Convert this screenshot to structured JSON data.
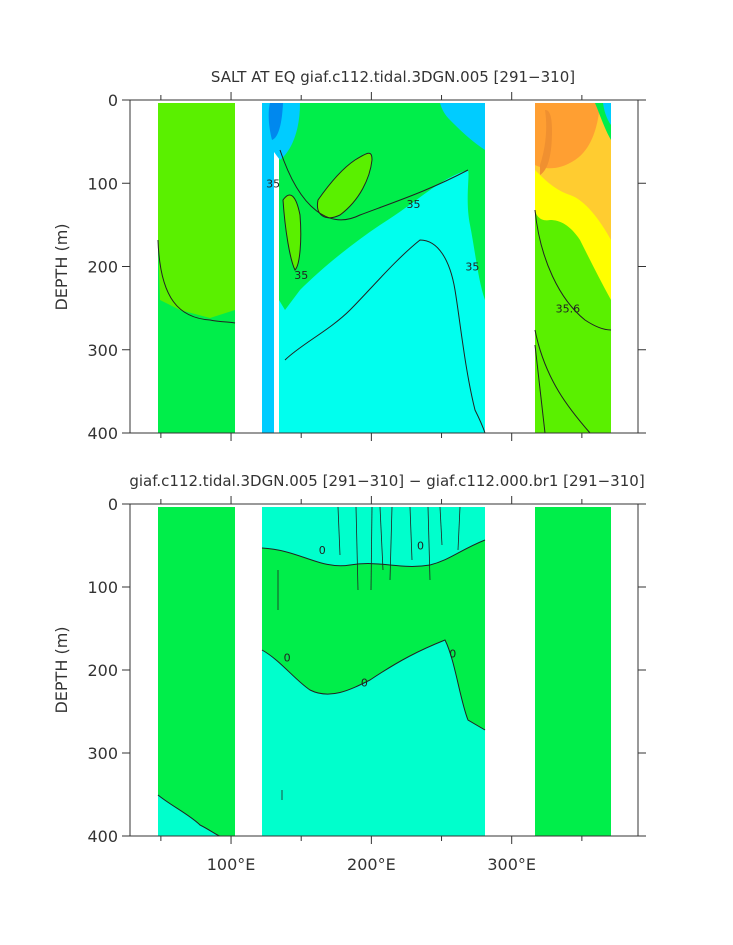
{
  "chart_data": [
    {
      "type": "heatmap",
      "title": "SALT AT EQ giaf.c112.tidal.3DGN.005 [291−310]",
      "ylabel": "DEPTH (m)",
      "yticks": [
        "0",
        "100",
        "200",
        "300",
        "400"
      ],
      "ylim": [
        400,
        0
      ],
      "xlim": [
        28,
        390
      ],
      "contour_labels": [
        {
          "text": "35",
          "x": 130,
          "y": 105
        },
        {
          "text": "35",
          "x": 230,
          "y": 130
        },
        {
          "text": "35",
          "x": 150,
          "y": 215
        },
        {
          "text": "35",
          "x": 272,
          "y": 205
        },
        {
          "text": "35.6",
          "x": 340,
          "y": 255
        }
      ],
      "colors": {
        "green": "#00ee4a",
        "lime": "#5af000",
        "cyan": "#00ffee",
        "sky": "#00ccff",
        "blue": "#0088ee",
        "yellow": "#ffff00",
        "gold": "#ffcc30",
        "orange": "#ff9f32",
        "dark_orange": "#f09030"
      }
    },
    {
      "type": "heatmap",
      "title": "giaf.c112.tidal.3DGN.005 [291−310] − giaf.c112.000.br1 [291−310]",
      "ylabel": "DEPTH (m)",
      "yticks": [
        "0",
        "100",
        "200",
        "300",
        "400"
      ],
      "xticks": [
        "100°E",
        "200°E",
        "300°E"
      ],
      "ylim": [
        400,
        0
      ],
      "xlim": [
        28,
        390
      ],
      "contour_labels": [
        {
          "text": "0",
          "x": 165,
          "y": 60
        },
        {
          "text": "0",
          "x": 235,
          "y": 55
        },
        {
          "text": "0",
          "x": 140,
          "y": 190
        },
        {
          "text": "0",
          "x": 195,
          "y": 220
        },
        {
          "text": "0",
          "x": 258,
          "y": 185
        }
      ],
      "colors": {
        "green": "#00ee4a",
        "aqua": "#00ffcc"
      }
    }
  ]
}
